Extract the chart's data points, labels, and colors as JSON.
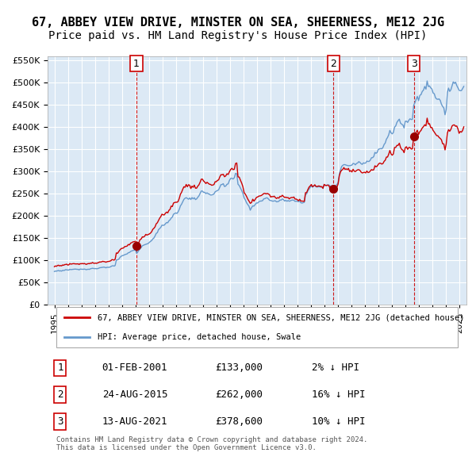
{
  "title": "67, ABBEY VIEW DRIVE, MINSTER ON SEA, SHEERNESS, ME12 2JG",
  "subtitle": "Price paid vs. HM Land Registry's House Price Index (HPI)",
  "hpi_label": "HPI: Average price, detached house, Swale",
  "price_label": "67, ABBEY VIEW DRIVE, MINSTER ON SEA, SHEERNESS, ME12 2JG (detached house)",
  "hpi_color": "#6699cc",
  "price_color": "#cc0000",
  "bg_color": "#dce9f5",
  "grid_color": "#ffffff",
  "sale_points": [
    {
      "date_num": 2001.08,
      "price": 133000,
      "label": "1",
      "date_str": "01-FEB-2001",
      "pct": "2%",
      "dir": "↓"
    },
    {
      "date_num": 2015.65,
      "price": 262000,
      "label": "2",
      "date_str": "24-AUG-2015",
      "pct": "16%",
      "dir": "↓"
    },
    {
      "date_num": 2021.61,
      "price": 378600,
      "label": "3",
      "date_str": "13-AUG-2021",
      "pct": "10%",
      "dir": "↓"
    }
  ],
  "vline_color": "#cc0000",
  "marker_color": "#990000",
  "ylim": [
    0,
    560000
  ],
  "yticks": [
    0,
    50000,
    100000,
    150000,
    200000,
    250000,
    300000,
    350000,
    400000,
    450000,
    500000,
    550000
  ],
  "xlim_start": 1994.5,
  "xlim_end": 2025.5,
  "footnote": "Contains HM Land Registry data © Crown copyright and database right 2024.\nThis data is licensed under the Open Government Licence v3.0.",
  "title_fontsize": 11,
  "subtitle_fontsize": 10,
  "axis_fontsize": 9,
  "label_box_color": "#cc0000",
  "label_box_fill": "#ffffff"
}
